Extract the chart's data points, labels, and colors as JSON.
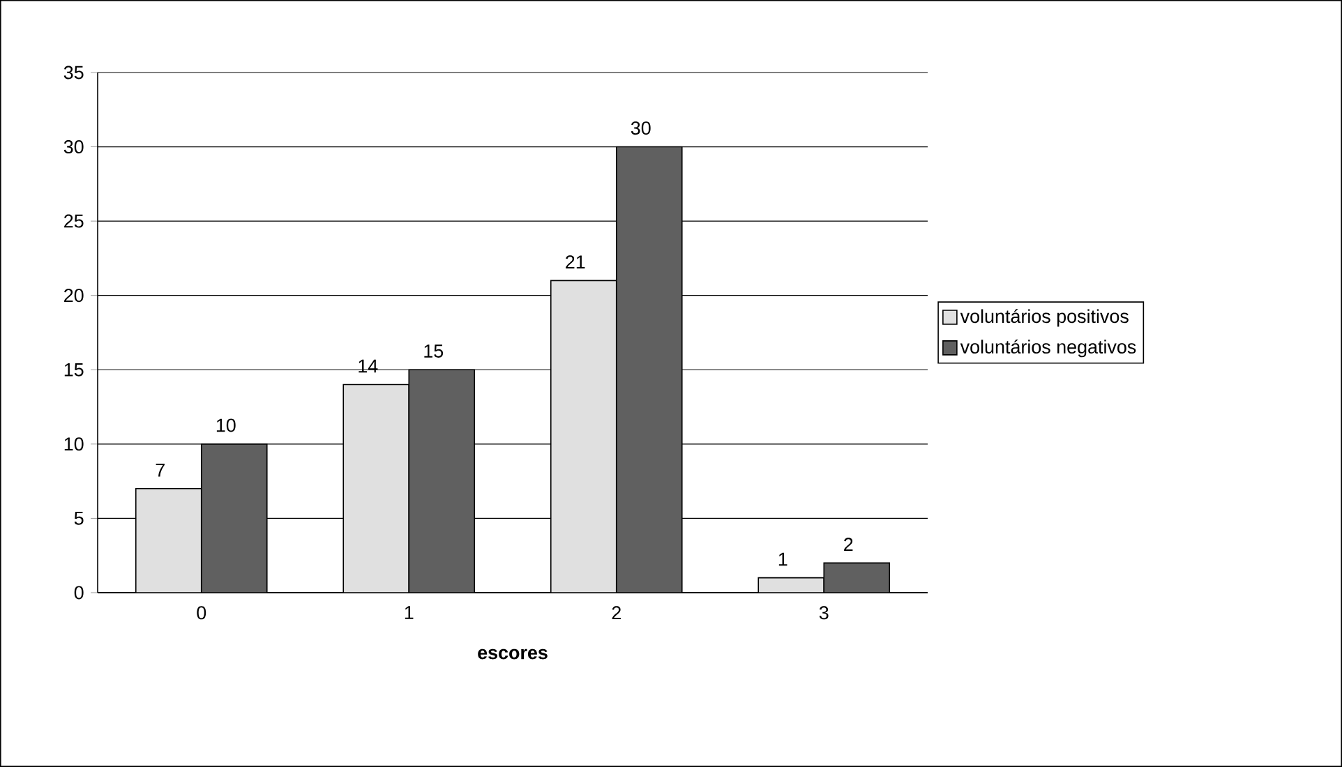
{
  "chart_data": {
    "type": "bar",
    "xlabel": "escores",
    "categories": [
      "0",
      "1",
      "2",
      "3"
    ],
    "series": [
      {
        "name": "voluntários positivos",
        "color": "#e0e0e0",
        "values": [
          7,
          14,
          21,
          1
        ]
      },
      {
        "name": "voluntários negativos",
        "color": "#606060",
        "values": [
          10,
          15,
          30,
          2
        ]
      }
    ],
    "ylim": [
      0,
      35
    ],
    "yticks": [
      0,
      5,
      10,
      15,
      20,
      25,
      30,
      35
    ],
    "grid": "y",
    "legend": "right",
    "data_labels": true
  }
}
